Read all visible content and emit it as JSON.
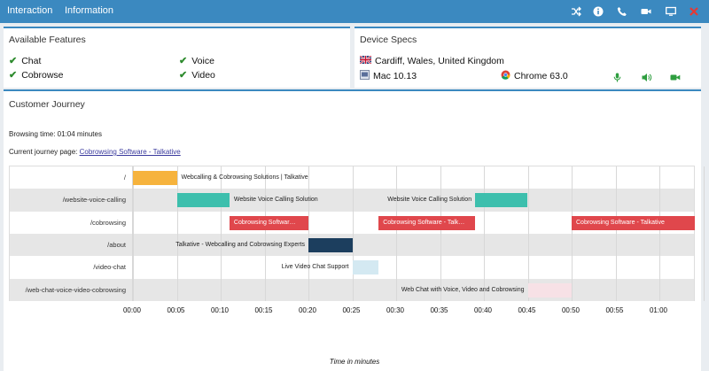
{
  "nav": {
    "interaction": "Interaction",
    "information": "Information"
  },
  "toolbar_icons": [
    "shuffle-icon",
    "info-icon",
    "phone-icon",
    "video-camera-icon",
    "monitor-icon",
    "close-icon"
  ],
  "colors": {
    "header": "#3b89c0",
    "check": "#2e8b2e",
    "orange": "#f6b33d",
    "teal": "#3dbfad",
    "red": "#e0474c",
    "navy": "#1c3e5e",
    "light_blue": "#d4e9f2",
    "pink": "#f7e1e6"
  },
  "features": {
    "title": "Available Features",
    "items": [
      "Chat",
      "Voice",
      "Cobrowse",
      "Video"
    ]
  },
  "device": {
    "title": "Device Specs",
    "location": "Cardiff, Wales, United Kingdom",
    "os": "Mac 10.13",
    "browser": "Chrome 63.0",
    "media_icons": [
      "microphone-icon",
      "speaker-icon",
      "video-icon"
    ]
  },
  "journey": {
    "title": "Customer Journey",
    "browsing_time": "Browsing time: 01:04 minutes",
    "current_page_label": "Current journey page: ",
    "current_page_link": "Cobrowsing Software - Talkative",
    "rows": [
      "/",
      "/website-voice-calling",
      "/cobrowsing",
      "/about",
      "/video-chat",
      "/web-chat-voice-video-cobrowsing"
    ],
    "ticks": [
      "00:00",
      "00:05",
      "00:10",
      "00:15",
      "00:20",
      "00:25",
      "00:30",
      "00:35",
      "00:40",
      "00:45",
      "00:50",
      "00:55",
      "01:00"
    ],
    "axis_title": "Time in minutes",
    "segments": [
      {
        "row": 0,
        "start": 0,
        "end": 5,
        "color": "#f6b33d",
        "label": "Webcalling & Cobrowsing Solutions | Talkative",
        "label_pos": "right"
      },
      {
        "row": 1,
        "start": 5,
        "end": 11,
        "color": "#3dbfad",
        "label": "Website Voice Calling Solution",
        "label_pos": "right"
      },
      {
        "row": 1,
        "start": 39,
        "end": 45,
        "color": "#3dbfad",
        "label": "Website Voice Calling Solution",
        "label_pos": "left"
      },
      {
        "row": 2,
        "start": 11,
        "end": 20,
        "color": "#e0474c",
        "label": "Cobrowsing Softwar…",
        "label_pos": "inside"
      },
      {
        "row": 2,
        "start": 28,
        "end": 39,
        "color": "#e0474c",
        "label": "Cobrowsing Software - Talk…",
        "label_pos": "inside"
      },
      {
        "row": 2,
        "start": 50,
        "end": 64,
        "color": "#e0474c",
        "label": "Cobrowsing Software - Talkative",
        "label_pos": "inside"
      },
      {
        "row": 3,
        "start": 20,
        "end": 25,
        "color": "#1c3e5e",
        "label": "Talkative - Webcalling and Cobrowsing Experts",
        "label_pos": "left"
      },
      {
        "row": 4,
        "start": 25,
        "end": 28,
        "color": "#d4e9f2",
        "label": "Live Video Chat Support",
        "label_pos": "left"
      },
      {
        "row": 5,
        "start": 45,
        "end": 50,
        "color": "#f7e1e6",
        "label": "Web Chat with Voice, Video and Cobrowsing",
        "label_pos": "left"
      }
    ]
  }
}
